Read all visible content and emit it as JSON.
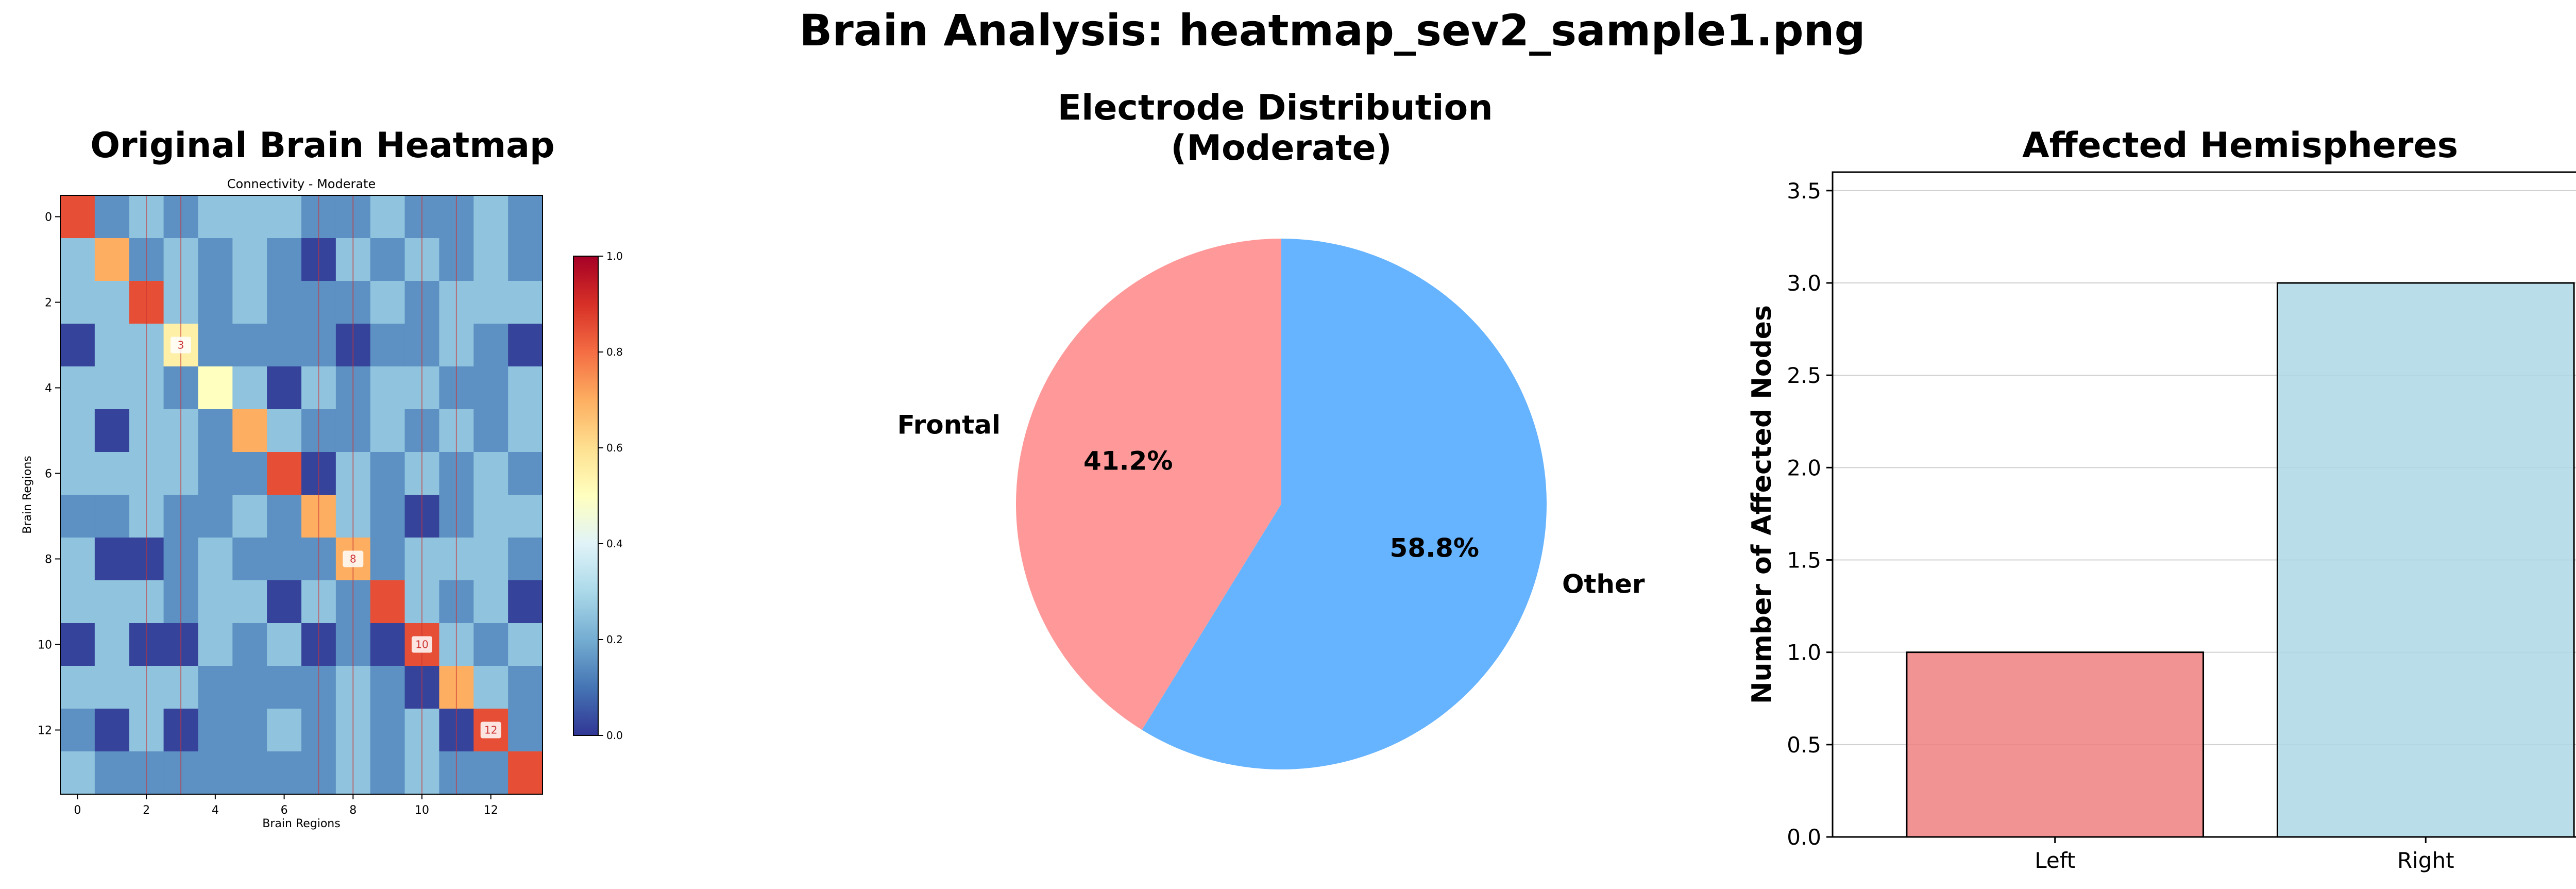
{
  "suptitle": "Brain Analysis: heatmap_sev2_sample1.png",
  "colors": {
    "frontal": "#ff9999",
    "other": "#66b3ff",
    "left_bar": "#f08080",
    "right_bar": "#add8e6",
    "separator": "#cc3333"
  },
  "chart_data": [
    {
      "type": "heatmap",
      "title": "Original Brain Heatmap",
      "subtitle": "Connectivity - Moderate",
      "xlabel": "Brain Regions",
      "ylabel": "Brain Regions",
      "colormap": "RdYlBu_r",
      "x_ticks": [
        "0",
        "2",
        "4",
        "6",
        "8",
        "10",
        "12"
      ],
      "y_ticks": [
        "0",
        "2",
        "4",
        "6",
        "8",
        "10",
        "12"
      ],
      "colorbar": {
        "range": [
          0.0,
          1.0
        ],
        "ticks": [
          "0.0",
          "0.2",
          "0.4",
          "0.6",
          "0.8",
          "1.0"
        ]
      },
      "vertical_separators_after_columns": [
        2,
        3,
        7,
        8,
        10,
        11
      ],
      "annotations": [
        {
          "row": 3,
          "col": 3,
          "text": "3"
        },
        {
          "row": 8,
          "col": 8,
          "text": "8"
        },
        {
          "row": 10,
          "col": 10,
          "text": "10"
        },
        {
          "row": 12,
          "col": 12,
          "text": "12"
        }
      ],
      "values": [
        [
          0.85,
          0.15,
          0.25,
          0.15,
          0.25,
          0.25,
          0.25,
          0.15,
          0.15,
          0.25,
          0.15,
          0.15,
          0.25,
          0.15
        ],
        [
          0.25,
          0.7,
          0.15,
          0.25,
          0.15,
          0.25,
          0.15,
          0.02,
          0.25,
          0.15,
          0.25,
          0.15,
          0.25,
          0.15
        ],
        [
          0.25,
          0.25,
          0.85,
          0.25,
          0.15,
          0.25,
          0.15,
          0.15,
          0.15,
          0.25,
          0.15,
          0.25,
          0.25,
          0.25
        ],
        [
          0.02,
          0.25,
          0.25,
          0.55,
          0.15,
          0.15,
          0.15,
          0.15,
          0.02,
          0.15,
          0.15,
          0.25,
          0.15,
          0.02
        ],
        [
          0.25,
          0.25,
          0.25,
          0.15,
          0.5,
          0.25,
          0.02,
          0.25,
          0.15,
          0.25,
          0.25,
          0.15,
          0.15,
          0.25
        ],
        [
          0.25,
          0.02,
          0.25,
          0.25,
          0.15,
          0.7,
          0.25,
          0.15,
          0.15,
          0.25,
          0.15,
          0.25,
          0.15,
          0.25
        ],
        [
          0.25,
          0.25,
          0.25,
          0.25,
          0.15,
          0.15,
          0.85,
          0.02,
          0.25,
          0.15,
          0.25,
          0.15,
          0.25,
          0.15
        ],
        [
          0.15,
          0.15,
          0.25,
          0.15,
          0.15,
          0.25,
          0.15,
          0.7,
          0.25,
          0.15,
          0.02,
          0.15,
          0.25,
          0.25
        ],
        [
          0.25,
          0.02,
          0.02,
          0.15,
          0.25,
          0.15,
          0.15,
          0.15,
          0.7,
          0.15,
          0.25,
          0.25,
          0.25,
          0.15
        ],
        [
          0.25,
          0.25,
          0.25,
          0.15,
          0.25,
          0.25,
          0.02,
          0.25,
          0.15,
          0.85,
          0.25,
          0.15,
          0.25,
          0.02
        ],
        [
          0.02,
          0.25,
          0.02,
          0.02,
          0.25,
          0.15,
          0.25,
          0.02,
          0.15,
          0.02,
          0.85,
          0.25,
          0.15,
          0.25
        ],
        [
          0.25,
          0.25,
          0.25,
          0.25,
          0.15,
          0.15,
          0.15,
          0.15,
          0.25,
          0.15,
          0.02,
          0.7,
          0.25,
          0.15
        ],
        [
          0.15,
          0.02,
          0.25,
          0.02,
          0.15,
          0.15,
          0.25,
          0.15,
          0.25,
          0.15,
          0.25,
          0.02,
          0.85,
          0.15
        ],
        [
          0.25,
          0.15,
          0.15,
          0.15,
          0.15,
          0.15,
          0.15,
          0.15,
          0.25,
          0.15,
          0.25,
          0.15,
          0.15,
          0.85
        ]
      ]
    },
    {
      "type": "pie",
      "title": "Electrode Distribution\n(Moderate)",
      "labels": [
        "Frontal",
        "Other"
      ],
      "values": [
        41.2,
        58.8
      ],
      "autopct_labels": [
        "41.2%",
        "58.8%"
      ],
      "start_angle": 90
    },
    {
      "type": "bar",
      "title": "Affected Hemispheres",
      "categories": [
        "Left",
        "Right"
      ],
      "values": [
        1,
        3
      ],
      "xlabel": "",
      "ylabel": "Number of Affected Nodes",
      "ylim": [
        0,
        3.6
      ],
      "y_ticks": [
        0.0,
        0.5,
        1.0,
        1.5,
        2.0,
        2.5,
        3.0,
        3.5
      ],
      "grid": "y"
    }
  ]
}
